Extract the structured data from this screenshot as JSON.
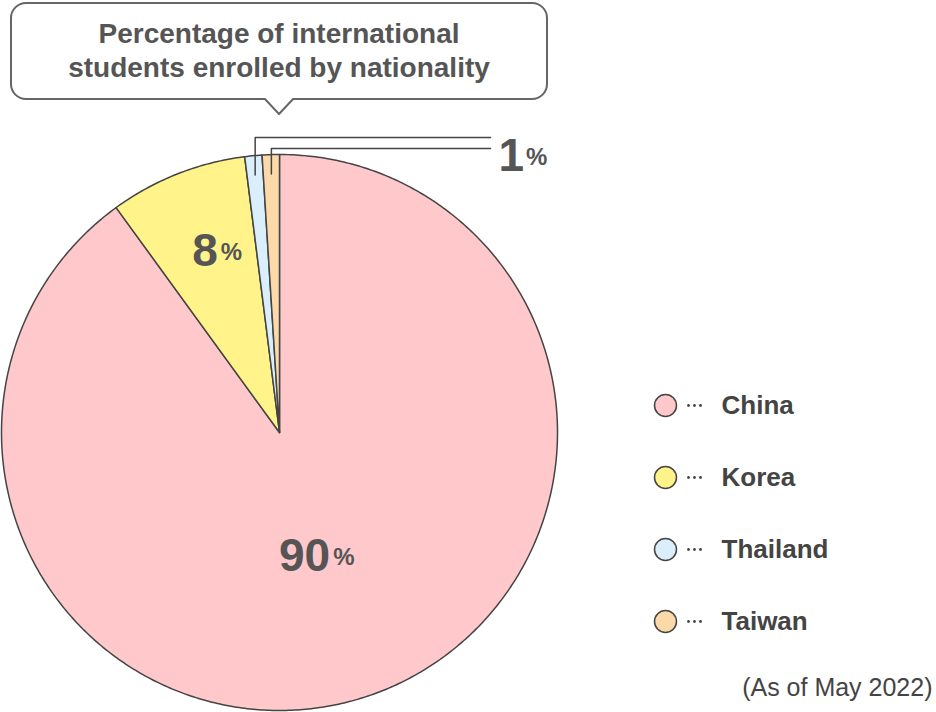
{
  "chart_data": {
    "type": "pie",
    "title": "Percentage of international\nstudents enrolled by nationality",
    "categories": [
      "China",
      "Korea",
      "Thailand",
      "Taiwan"
    ],
    "values": [
      90,
      8,
      1,
      1
    ],
    "colors": [
      "#ffc9cb",
      "#fff38a",
      "#daeefb",
      "#fcd9a8"
    ],
    "data_labels": true,
    "value_labels": [
      "90%",
      "8%",
      "1%",
      null
    ],
    "legend": "right",
    "note": "(As of May 2022)"
  }
}
